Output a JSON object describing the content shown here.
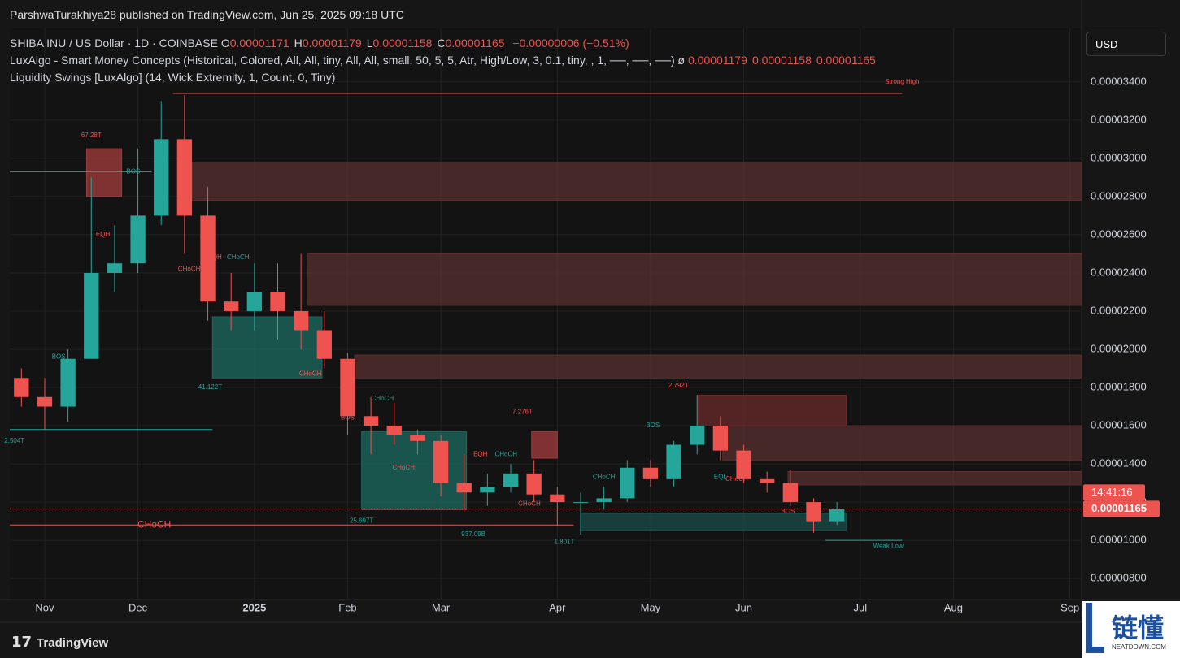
{
  "header": {
    "publisher": "ParshwaTurakhiya28 published on TradingView.com, Jun 25, 2025 09:18 UTC",
    "symbol": "SHIBA INU / US Dollar · 1D · COINBASE",
    "ohlc": [
      {
        "key": "O",
        "value": "0.00001171"
      },
      {
        "key": "H",
        "value": "0.00001179"
      },
      {
        "key": "L",
        "value": "0.00001158"
      },
      {
        "key": "C",
        "value": "0.00001165"
      }
    ],
    "change": "−0.00000006 (−0.51%)",
    "indicator1": "LuxAlgo - Smart Money Concepts (Historical, Colored, All, All, tiny, All, All, small, 50, 5, 5, Atr, High/Low, 3, 0.1, tiny, , 1, ──, ──, ──)",
    "indicator1_symbol": "ø",
    "indicator1_values": [
      "0.00001179",
      "0.00001158",
      "0.00001165"
    ],
    "indicator2": "Liquidity Swings [LuxAlgo] (14, Wick Extremity, 1, Count, 0, Tiny)",
    "currency": "USD",
    "countdown": "14:41:16",
    "price_label": "0.00001165"
  },
  "footer": {
    "brand": "TradingView",
    "watermark": "链懂",
    "watermark_sub": "NEATDOWN.COM"
  },
  "chart_data": {
    "type": "candlestick",
    "grid": true,
    "up_color": "#26a69a",
    "down_color": "#ef5350",
    "last_price": 1.165e-05,
    "ylim": [
      6.9e-06,
      3.68e-05
    ],
    "yticks": [
      {
        "value": 8e-06,
        "label": "0.00000800"
      },
      {
        "value": 1e-05,
        "label": "0.00001000"
      },
      {
        "value": 1.2e-05,
        "label": "0.00001200"
      },
      {
        "value": 1.4e-05,
        "label": "0.00001400"
      },
      {
        "value": 1.6e-05,
        "label": "0.00001600"
      },
      {
        "value": 1.8e-05,
        "label": "0.00001800"
      },
      {
        "value": 2e-05,
        "label": "0.00002000"
      },
      {
        "value": 2.2e-05,
        "label": "0.00002200"
      },
      {
        "value": 2.4e-05,
        "label": "0.00002400"
      },
      {
        "value": 2.6e-05,
        "label": "0.00002600"
      },
      {
        "value": 2.8e-05,
        "label": "0.00002800"
      },
      {
        "value": 3e-05,
        "label": "0.00003000"
      },
      {
        "value": 3.2e-05,
        "label": "0.00003200"
      },
      {
        "value": 3.4e-05,
        "label": "0.00003400"
      }
    ],
    "categories": [
      null,
      "Nov",
      null,
      null,
      null,
      "Dec",
      null,
      null,
      null,
      null,
      "2025",
      null,
      null,
      null,
      "Feb",
      null,
      null,
      null,
      "Mar",
      null,
      null,
      null,
      null,
      "Apr",
      null,
      null,
      null,
      "May",
      null,
      null,
      null,
      "Jun",
      null,
      null,
      null,
      null,
      "Jul",
      null,
      null,
      null,
      "Aug",
      null,
      null,
      null,
      null,
      "Sep"
    ],
    "open": [
      1.85e-05,
      1.75e-05,
      1.7e-05,
      1.95e-05,
      2.4e-05,
      2.45e-05,
      2.7e-05,
      3.1e-05,
      2.7e-05,
      2.25e-05,
      2.2e-05,
      2.3e-05,
      2.2e-05,
      2.1e-05,
      1.95e-05,
      1.65e-05,
      1.6e-05,
      1.55e-05,
      1.52e-05,
      1.3e-05,
      1.25e-05,
      1.28e-05,
      1.35e-05,
      1.24e-05,
      1.2e-05,
      1.2e-05,
      1.22e-05,
      1.38e-05,
      1.32e-05,
      1.5e-05,
      1.6e-05,
      1.47e-05,
      1.32e-05,
      1.3e-05,
      1.2e-05,
      1.1e-05,
      null,
      null,
      null,
      null,
      null,
      null,
      null,
      null,
      null,
      null
    ],
    "high": [
      1.9e-05,
      1.85e-05,
      2e-05,
      2.9e-05,
      2.65e-05,
      3.05e-05,
      3.3e-05,
      3.33e-05,
      2.85e-05,
      2.4e-05,
      2.45e-05,
      2.45e-05,
      2.5e-05,
      2.2e-05,
      1.98e-05,
      1.75e-05,
      1.72e-05,
      1.58e-05,
      1.55e-05,
      1.45e-05,
      1.35e-05,
      1.4e-05,
      1.42e-05,
      1.28e-05,
      1.25e-05,
      1.28e-05,
      1.42e-05,
      1.42e-05,
      1.52e-05,
      1.76e-05,
      1.65e-05,
      1.5e-05,
      1.36e-05,
      1.37e-05,
      1.22e-05,
      1.2e-05,
      null,
      null,
      null,
      null,
      null,
      null,
      null,
      null,
      null,
      null
    ],
    "low": [
      1.7e-05,
      1.58e-05,
      1.62e-05,
      1.95e-05,
      2.3e-05,
      2.4e-05,
      2.65e-05,
      2.5e-05,
      2.15e-05,
      2.1e-05,
      2.1e-05,
      2.05e-05,
      2e-05,
      1.9e-05,
      1.55e-05,
      1.45e-05,
      1.5e-05,
      1.45e-05,
      1.23e-05,
      1.15e-05,
      1.18e-05,
      1.25e-05,
      1.2e-05,
      1.08e-05,
      1.03e-05,
      1.16e-05,
      1.2e-05,
      1.28e-05,
      1.28e-05,
      1.45e-05,
      1.42e-05,
      1.3e-05,
      1.25e-05,
      1.18e-05,
      1.04e-05,
      1.08e-05,
      null,
      null,
      null,
      null,
      null,
      null,
      null,
      null,
      null,
      null
    ],
    "close": [
      1.75e-05,
      1.7e-05,
      1.95e-05,
      2.4e-05,
      2.45e-05,
      2.7e-05,
      3.1e-05,
      2.7e-05,
      2.25e-05,
      2.2e-05,
      2.3e-05,
      2.2e-05,
      2.1e-05,
      1.95e-05,
      1.65e-05,
      1.6e-05,
      1.55e-05,
      1.52e-05,
      1.3e-05,
      1.25e-05,
      1.28e-05,
      1.35e-05,
      1.24e-05,
      1.2e-05,
      1.2e-05,
      1.22e-05,
      1.38e-05,
      1.32e-05,
      1.5e-05,
      1.6e-05,
      1.47e-05,
      1.32e-05,
      1.3e-05,
      1.2e-05,
      1.1e-05,
      1.165e-05,
      null,
      null,
      null,
      null,
      null,
      null,
      null,
      null,
      null,
      null
    ],
    "zones": [
      {
        "from": 7.5,
        "to": 46,
        "low": 2.78e-05,
        "high": 2.98e-05,
        "color": "#5a3030"
      },
      {
        "from": 12.8,
        "to": 46,
        "low": 2.23e-05,
        "high": 2.5e-05,
        "color": "#5a3030"
      },
      {
        "from": 14.8,
        "to": 46,
        "low": 1.85e-05,
        "high": 1.97e-05,
        "color": "#5a3030"
      },
      {
        "from": 30.6,
        "to": 46,
        "low": 1.42e-05,
        "high": 1.6e-05,
        "color": "#5a3030"
      },
      {
        "from": 33.4,
        "to": 46,
        "low": 1.29e-05,
        "high": 1.36e-05,
        "color": "#5a3030"
      },
      {
        "from": 29.5,
        "to": 35.9,
        "low": 1.6e-05,
        "high": 1.76e-05,
        "color": "#6b2a2a"
      },
      {
        "from": 3.3,
        "to": 4.8,
        "low": 2.8e-05,
        "high": 3.05e-05,
        "color": "#a63c3c"
      },
      {
        "from": 22.4,
        "to": 23.5,
        "low": 1.43e-05,
        "high": 1.57e-05,
        "color": "#a63c3c"
      },
      {
        "from": 8.7,
        "to": 13.4,
        "low": 1.85e-05,
        "high": 2.17e-05,
        "color": "#1c6b61"
      },
      {
        "from": 15.1,
        "to": 19.6,
        "low": 1.16e-05,
        "high": 1.57e-05,
        "color": "#1c6b61"
      },
      {
        "from": 24.5,
        "to": 35.9,
        "low": 1.05e-05,
        "high": 1.14e-05,
        "color": "#1a4d48"
      }
    ],
    "levels": [
      {
        "from": 7,
        "to": 38.3,
        "price": 3.34e-05,
        "color": "#ef5350"
      },
      {
        "from": 35,
        "to": 38.3,
        "price": 1e-05,
        "color": "#26a69a"
      },
      {
        "from": 0,
        "to": 24.2,
        "price": 1.08e-05,
        "color": "#ef5350"
      },
      {
        "from": 0,
        "to": 8.7,
        "price": 1.58e-05,
        "color": "#26a69a"
      },
      {
        "from": 0,
        "to": 6.1,
        "price": 2.93e-05,
        "color": "#26a69a"
      }
    ],
    "annotations": [
      {
        "text": "Strong High",
        "at": 38.3,
        "price": 3.4e-05,
        "color": "#ef5350"
      },
      {
        "text": "Weak Low",
        "at": 37.7,
        "price": 9.7e-06,
        "color": "#26a69a"
      },
      {
        "text": "67.28T",
        "at": 3.5,
        "price": 3.12e-05,
        "color": "#ef5350"
      },
      {
        "text": "BOS",
        "at": 5.3,
        "price": 2.93e-05,
        "color": "#26a69a"
      },
      {
        "text": "EQH",
        "at": 4,
        "price": 2.6e-05,
        "color": "#ef5350"
      },
      {
        "text": "CHoCH",
        "at": 7.7,
        "price": 2.42e-05,
        "color": "#ef5350"
      },
      {
        "text": "EQH",
        "at": 8.8,
        "price": 2.48e-05,
        "color": "#ef5350"
      },
      {
        "text": "CHoCH",
        "at": 9.8,
        "price": 2.48e-05,
        "color": "#26a69a"
      },
      {
        "text": "41.122T",
        "at": 8.6,
        "price": 1.8e-05,
        "color": "#26a69a"
      },
      {
        "text": "CHoCH",
        "at": 12.9,
        "price": 1.87e-05,
        "color": "#ef5350"
      },
      {
        "text": "BOS",
        "at": 14.5,
        "price": 1.64e-05,
        "color": "#ef5350"
      },
      {
        "text": "CHoCH",
        "at": 16,
        "price": 1.74e-05,
        "color": "#26a69a"
      },
      {
        "text": "CHoCH",
        "at": 16.9,
        "price": 1.38e-05,
        "color": "#ef5350"
      },
      {
        "text": "25.697T",
        "at": 15.1,
        "price": 1.1e-05,
        "color": "#26a69a"
      },
      {
        "text": "937.09B",
        "at": 19.9,
        "price": 1.03e-05,
        "color": "#26a69a"
      },
      {
        "text": "EQH",
        "at": 20.2,
        "price": 1.45e-05,
        "color": "#ef5350"
      },
      {
        "text": "CHoCH",
        "at": 21.3,
        "price": 1.45e-05,
        "color": "#26a69a"
      },
      {
        "text": "7.276T",
        "at": 22,
        "price": 1.67e-05,
        "color": "#ef5350"
      },
      {
        "text": "CHoCH",
        "at": 22.3,
        "price": 1.19e-05,
        "color": "#ef5350"
      },
      {
        "text": "1.801T",
        "at": 23.8,
        "price": 9.9e-06,
        "color": "#26a69a"
      },
      {
        "text": "CHoCH",
        "at": 25.5,
        "price": 1.33e-05,
        "color": "#26a69a"
      },
      {
        "text": "BOS",
        "at": 27.6,
        "price": 1.6e-05,
        "color": "#26a69a"
      },
      {
        "text": "2.792T",
        "at": 28.7,
        "price": 1.81e-05,
        "color": "#ef5350"
      },
      {
        "text": "EQL",
        "at": 30.5,
        "price": 1.33e-05,
        "color": "#26a69a"
      },
      {
        "text": "CHoCH",
        "at": 31.2,
        "price": 1.32e-05,
        "color": "#ef5350"
      },
      {
        "text": "BOS",
        "at": 33.4,
        "price": 1.15e-05,
        "color": "#ef5350"
      },
      {
        "text": "BOS",
        "at": 2.1,
        "price": 1.96e-05,
        "color": "#26a69a"
      },
      {
        "text": "2.504T",
        "at": 0.2,
        "price": 1.52e-05,
        "color": "#26a69a"
      },
      {
        "text": "CHoCH",
        "at": 6.2,
        "price": 1.08e-05,
        "color": "#ef5350",
        "size": "big"
      }
    ]
  }
}
